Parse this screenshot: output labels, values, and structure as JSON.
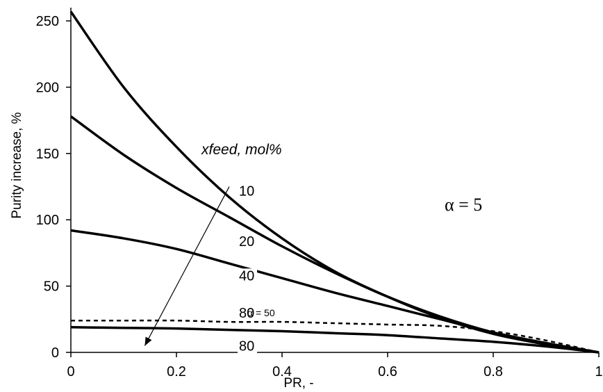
{
  "chart_data": {
    "type": "line",
    "xlabel": "PR, -",
    "ylabel": "Purity increase, %",
    "xlim": [
      0,
      1
    ],
    "ylim": [
      0,
      260
    ],
    "xticks": [
      0,
      0.2,
      0.4,
      0.6,
      0.8,
      1
    ],
    "xtick_labels": [
      "0",
      "0.2",
      "0.4",
      "0.6",
      "0.8",
      "1"
    ],
    "yticks": [
      0,
      50,
      100,
      150,
      200,
      250
    ],
    "ytick_labels": [
      "0",
      "50",
      "100",
      "150",
      "200",
      "250"
    ],
    "grid": false,
    "series": [
      {
        "name": "10",
        "style": "solid",
        "points": [
          [
            0,
            257
          ],
          [
            0.1,
            200
          ],
          [
            0.2,
            155
          ],
          [
            0.3,
            117
          ],
          [
            0.4,
            86
          ],
          [
            0.5,
            61
          ],
          [
            0.6,
            42
          ],
          [
            0.7,
            26
          ],
          [
            0.8,
            14
          ],
          [
            0.9,
            6
          ],
          [
            1.0,
            0
          ]
        ]
      },
      {
        "name": "20",
        "style": "solid",
        "points": [
          [
            0,
            178
          ],
          [
            0.1,
            149
          ],
          [
            0.2,
            124
          ],
          [
            0.3,
            102
          ],
          [
            0.4,
            80
          ],
          [
            0.5,
            60
          ],
          [
            0.6,
            42
          ],
          [
            0.7,
            27
          ],
          [
            0.8,
            15
          ],
          [
            0.9,
            6
          ],
          [
            1.0,
            0
          ]
        ]
      },
      {
        "name": "40",
        "style": "solid",
        "points": [
          [
            0,
            92
          ],
          [
            0.1,
            86
          ],
          [
            0.2,
            78
          ],
          [
            0.3,
            67
          ],
          [
            0.4,
            56
          ],
          [
            0.5,
            45
          ],
          [
            0.6,
            35
          ],
          [
            0.7,
            25
          ],
          [
            0.8,
            15
          ],
          [
            0.9,
            7
          ],
          [
            1.0,
            0
          ]
        ]
      },
      {
        "name": "80",
        "style": "dashed",
        "points": [
          [
            0,
            24
          ],
          [
            0.1,
            24
          ],
          [
            0.2,
            24
          ],
          [
            0.3,
            23
          ],
          [
            0.4,
            23
          ],
          [
            0.5,
            22
          ],
          [
            0.6,
            21
          ],
          [
            0.7,
            20
          ],
          [
            0.8,
            16
          ],
          [
            0.9,
            9
          ],
          [
            1.0,
            0
          ]
        ]
      },
      {
        "name": "80",
        "style": "solid",
        "points": [
          [
            0,
            19
          ],
          [
            0.1,
            18.5
          ],
          [
            0.2,
            18
          ],
          [
            0.3,
            17
          ],
          [
            0.4,
            16
          ],
          [
            0.5,
            14.5
          ],
          [
            0.6,
            13
          ],
          [
            0.7,
            10.5
          ],
          [
            0.8,
            8
          ],
          [
            0.9,
            4.5
          ],
          [
            1.0,
            0
          ]
        ]
      }
    ],
    "annotations": {
      "alpha_main": "α = 5",
      "alpha_dashed": "α = 50",
      "arrow_label": "xfeed, mol%",
      "arrow": {
        "from": [
          0.3,
          125
        ],
        "to": [
          0.14,
          5
        ]
      }
    },
    "curve_labels": [
      {
        "text": "10",
        "x": 0.3,
        "y": 122
      },
      {
        "text": "20",
        "x": 0.3,
        "y": 84
      },
      {
        "text": "40",
        "x": 0.3,
        "y": 58
      },
      {
        "text": "80",
        "x": 0.3,
        "y": 30
      },
      {
        "text": "80",
        "x": 0.3,
        "y": 5
      }
    ]
  }
}
